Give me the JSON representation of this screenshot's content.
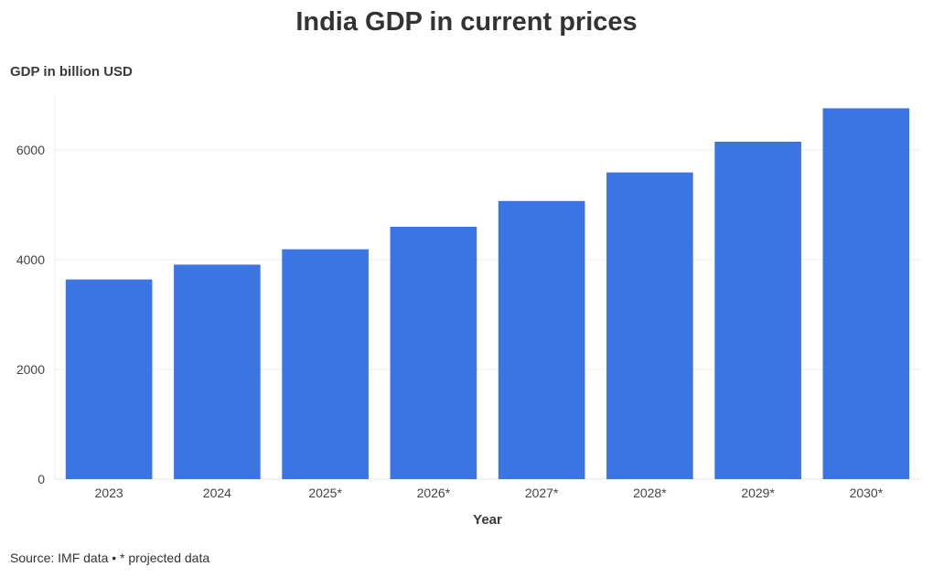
{
  "chart_data": {
    "type": "bar",
    "title": "India GDP in current prices",
    "ylabel": "GDP in billion USD",
    "xlabel": "Year",
    "categories": [
      "2023",
      "2024",
      "2025*",
      "2026*",
      "2027*",
      "2028*",
      "2029*",
      "2030*"
    ],
    "values": [
      3640,
      3910,
      4190,
      4600,
      5070,
      5590,
      6150,
      6760
    ],
    "ylim": [
      0,
      7000
    ],
    "yticks": [
      0,
      2000,
      4000,
      6000
    ],
    "grid": true,
    "bar_color": "#3b74e3",
    "source_note": "Source: IMF data • * projected data"
  }
}
